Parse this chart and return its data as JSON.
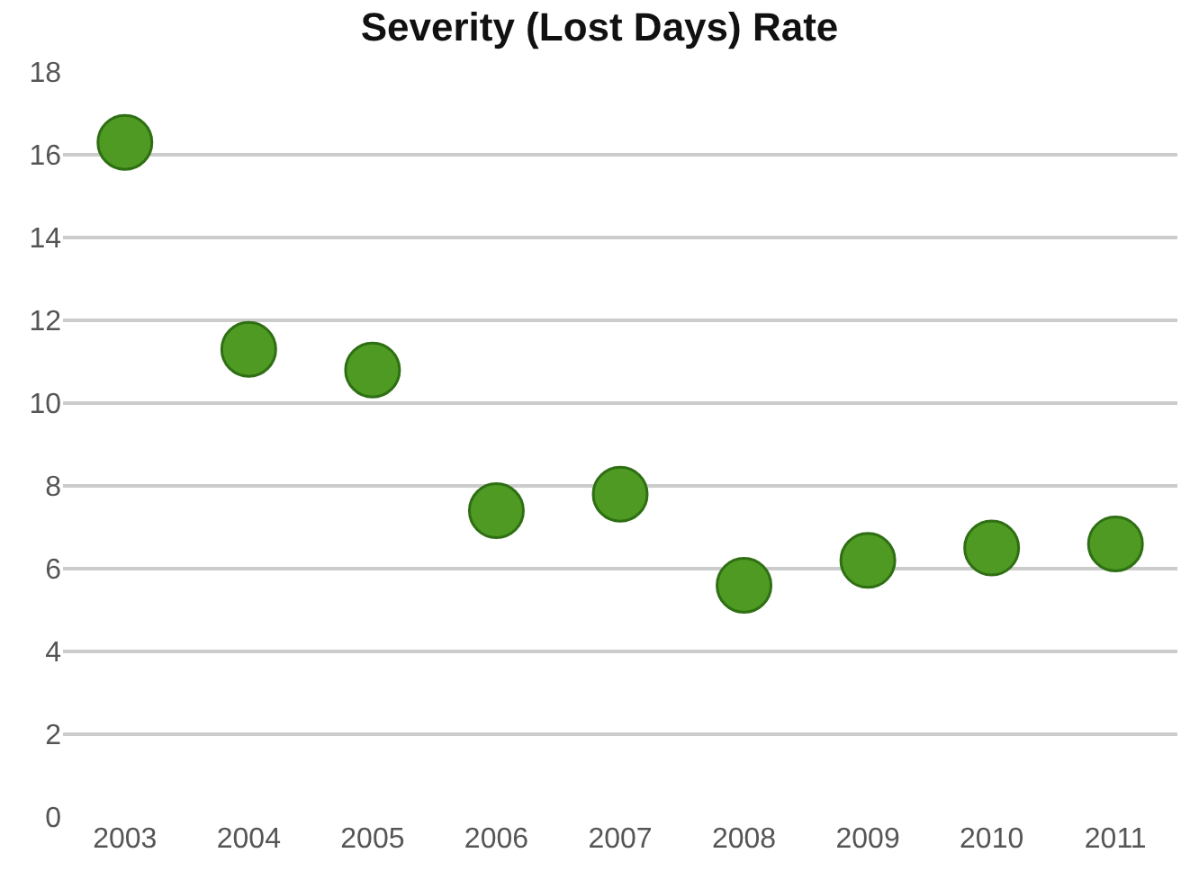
{
  "chart_data": {
    "type": "scatter",
    "title": "Severity (Lost Days) Rate",
    "categories": [
      "2003",
      "2004",
      "2005",
      "2006",
      "2007",
      "2008",
      "2009",
      "2010",
      "2011"
    ],
    "series": [
      {
        "color": "#4e9a22",
        "values": [
          16.3,
          11.3,
          10.8,
          7.4,
          7.8,
          5.6,
          6.2,
          6.5,
          6.6
        ]
      }
    ],
    "ylim": [
      0,
      18
    ],
    "yticks": [
      0,
      2,
      4,
      6,
      8,
      10,
      12,
      14,
      16,
      18
    ],
    "grid": "y",
    "legend": false,
    "marker": "circle"
  }
}
